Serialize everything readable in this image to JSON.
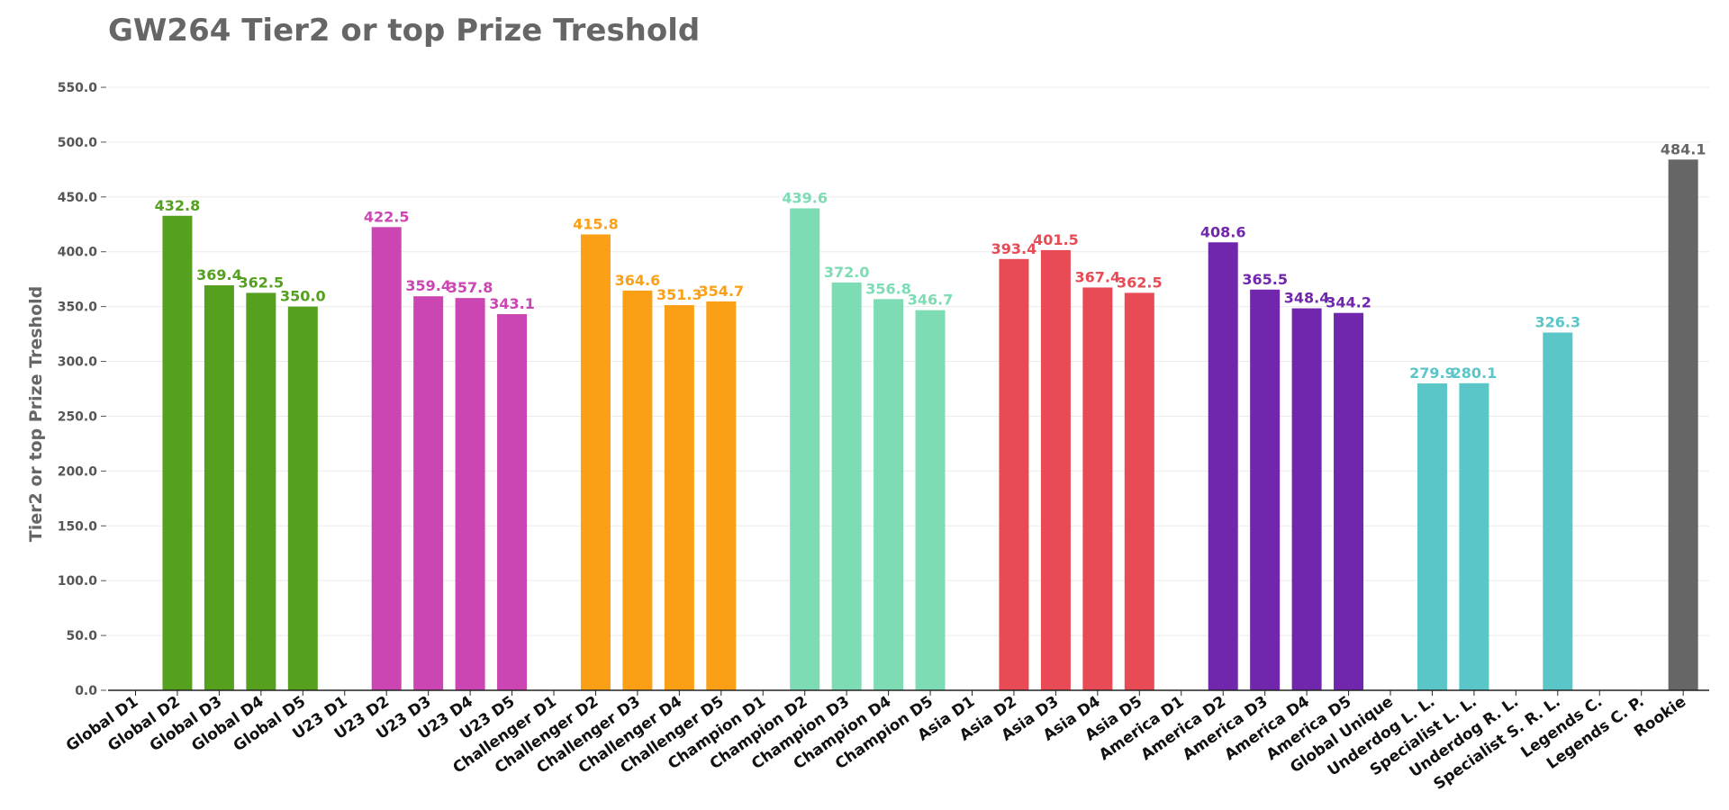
{
  "chart_data": {
    "type": "bar",
    "title": "GW264 Tier2 or top Prize Treshold",
    "ylabel": "Tier2 or top Prize Treshold",
    "xlabel": "",
    "ylim": [
      0,
      550
    ],
    "yticks": [
      "0.0",
      "50.0",
      "100.0",
      "150.0",
      "200.0",
      "250.0",
      "300.0",
      "350.0",
      "400.0",
      "450.0",
      "500.0",
      "550.0"
    ],
    "grid": true,
    "legend": "none",
    "categories": [
      "Global D1",
      "Global D2",
      "Global D3",
      "Global D4",
      "Global D5",
      "U23 D1",
      "U23 D2",
      "U23 D3",
      "U23 D4",
      "U23 D5",
      "Challenger D1",
      "Challenger D2",
      "Challenger D3",
      "Challenger D4",
      "Challenger D5",
      "Champion D1",
      "Champion D2",
      "Champion D3",
      "Champion D4",
      "Champion D5",
      "Asia D1",
      "Asia D2",
      "Asia D3",
      "Asia D4",
      "Asia D5",
      "America D1",
      "America D2",
      "America D3",
      "America D4",
      "America D5",
      "Global Unique",
      "Underdog L. L.",
      "Specialist L. L.",
      "Underdog R. L.",
      "Specialist S. R. L.",
      "Legends C.",
      "Legends C. P.",
      "Rookie"
    ],
    "values": [
      null,
      432.8,
      369.4,
      362.5,
      350.0,
      null,
      422.5,
      359.4,
      357.8,
      343.1,
      null,
      415.8,
      364.6,
      351.3,
      354.7,
      null,
      439.6,
      372.0,
      356.8,
      346.7,
      null,
      393.4,
      401.5,
      367.4,
      362.5,
      null,
      408.6,
      365.5,
      348.4,
      344.2,
      null,
      279.9,
      280.1,
      null,
      326.3,
      null,
      null,
      484.1
    ],
    "data_labels": [
      "",
      "432.8",
      "369.4",
      "362.5",
      "350.0",
      "",
      "422.5",
      "359.4",
      "357.8",
      "343.1",
      "",
      "415.8",
      "364.6",
      "351.3",
      "354.7",
      "",
      "439.6",
      "372.0",
      "356.8",
      "346.7",
      "",
      "393.4",
      "401.5",
      "367.4",
      "362.5",
      "",
      "408.6",
      "365.5",
      "348.4",
      "344.2",
      "",
      "279.9",
      "280.1",
      "",
      "326.3",
      "",
      "",
      "484.1"
    ],
    "colors": [
      "#55a01e",
      "#55a01e",
      "#55a01e",
      "#55a01e",
      "#55a01e",
      "#cb45b3",
      "#cb45b3",
      "#cb45b3",
      "#cb45b3",
      "#cb45b3",
      "#fba016",
      "#fba016",
      "#fba016",
      "#fba016",
      "#fba016",
      "#7ddcb3",
      "#7ddcb3",
      "#7ddcb3",
      "#7ddcb3",
      "#7ddcb3",
      "#e84b55",
      "#e84b55",
      "#e84b55",
      "#e84b55",
      "#e84b55",
      "#7127ad",
      "#7127ad",
      "#7127ad",
      "#7127ad",
      "#7127ad",
      "#5bc6c8",
      "#5bc6c8",
      "#5bc6c8",
      "#5bc6c8",
      "#5bc6c8",
      "#5bc6c8",
      "#5bc6c8",
      "#666666"
    ]
  }
}
